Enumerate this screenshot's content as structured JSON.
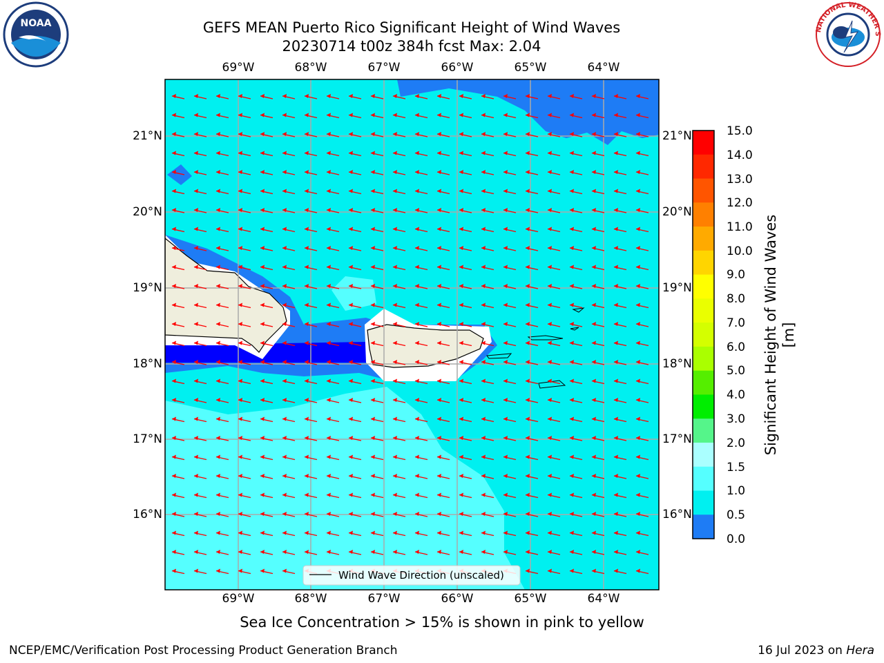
{
  "title": {
    "line1": "GEFS MEAN Puerto Rico Significant Height of Wind Waves",
    "line2": "20230714 t00z 384h fcst   Max: 2.04"
  },
  "map": {
    "lon_ticks": [
      "69°W",
      "68°W",
      "67°W",
      "66°W",
      "65°W",
      "64°W"
    ],
    "lat_ticks": [
      "21°N",
      "20°N",
      "19°N",
      "18°N",
      "17°N",
      "16°N"
    ],
    "legend_label": "Wind Wave Direction (unscaled)",
    "colors": {
      "ocean_low": "#1e7cf5",
      "ocean_mid": "#00f0f0",
      "ocean_high": "#55ffff",
      "land": "#efeedd",
      "arrow": "#ff0000"
    }
  },
  "colorbar": {
    "label": "Significant Height of Wind Waves [m]",
    "ticks": [
      "15.0",
      "14.0",
      "13.0",
      "12.0",
      "11.0",
      "10.0",
      "9.0",
      "8.0",
      "7.0",
      "6.0",
      "5.0",
      "4.0",
      "3.0",
      "2.0",
      "1.5",
      "1.0",
      "0.5",
      "0.0"
    ],
    "colors": [
      "#ff0000",
      "#ff2800",
      "#ff5500",
      "#ff8000",
      "#ffaa00",
      "#ffd500",
      "#ffff00",
      "#eaff00",
      "#d4ff00",
      "#aaff00",
      "#55ee00",
      "#00ee00",
      "#55f58a",
      "#aaffff",
      "#55ffff",
      "#00f0f0",
      "#1e7cf5",
      "#0000ff"
    ]
  },
  "logos": {
    "left_text": "NOAA",
    "right_text": "NATIONAL WEATHER SERVICE"
  },
  "footer": {
    "note": "Sea Ice Concentration > 15% is shown in pink to yellow",
    "left": "NCEP/EMC/Verification Post Processing Product Generation Branch",
    "right_prefix": "16 Jul 2023 on ",
    "right_host": "Hera"
  }
}
